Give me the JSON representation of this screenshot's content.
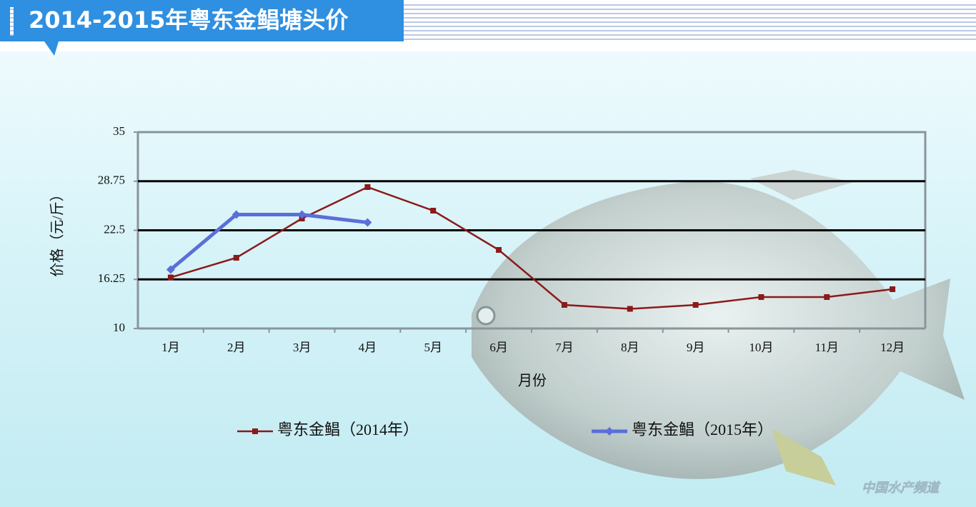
{
  "chart_data": {
    "type": "line",
    "title": "2014-2015年粤东金鲳塘头价",
    "y_label": "价格（元/斤）",
    "x_label": "月份",
    "watermark": "中国水产频道",
    "categories": [
      "1月",
      "2月",
      "3月",
      "4月",
      "5月",
      "6月",
      "7月",
      "8月",
      "9月",
      "10月",
      "11月",
      "12月"
    ],
    "series": [
      {
        "name": "粤东金鲳（2014年）",
        "color": "#8b1a1a",
        "marker": "square",
        "values": [
          16.5,
          19,
          24,
          28,
          25,
          20,
          13,
          12.5,
          13,
          14,
          14,
          15
        ]
      },
      {
        "name": "粤东金鲳（2015年）",
        "color": "#5b6fd8",
        "marker": "diamond",
        "values": [
          17.5,
          24.5,
          24.5,
          23.5,
          null,
          null,
          null,
          null,
          null,
          null,
          null,
          null
        ]
      }
    ],
    "ylim": [
      10,
      35
    ],
    "yticks": [
      10,
      16.25,
      22.5,
      28.75,
      35
    ],
    "grid": true
  }
}
